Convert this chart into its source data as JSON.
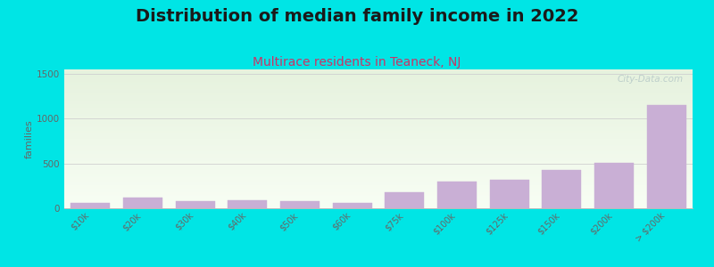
{
  "title": "Distribution of median family income in 2022",
  "subtitle": "Multirace residents in Teaneck, NJ",
  "ylabel": "families",
  "categories": [
    "$10k",
    "$20k",
    "$30k",
    "$40k",
    "$50k",
    "$60k",
    "$75k",
    "$100k",
    "$125k",
    "$150k",
    "$200k",
    "> $200k"
  ],
  "values": [
    55,
    115,
    80,
    85,
    80,
    60,
    175,
    300,
    320,
    430,
    510,
    1155
  ],
  "bar_color": "#c9afd5",
  "background_color": "#00e5e5",
  "plot_bg_top": "#e6f2de",
  "plot_bg_bottom": "#f8fef4",
  "title_fontsize": 14,
  "subtitle_fontsize": 10,
  "subtitle_color": "#cc3366",
  "ylabel_fontsize": 8,
  "tick_color": "#666666",
  "grid_color": "#d0d0d0",
  "ylim": [
    0,
    1550
  ],
  "yticks": [
    0,
    500,
    1000,
    1500
  ],
  "watermark": "City-Data.com"
}
